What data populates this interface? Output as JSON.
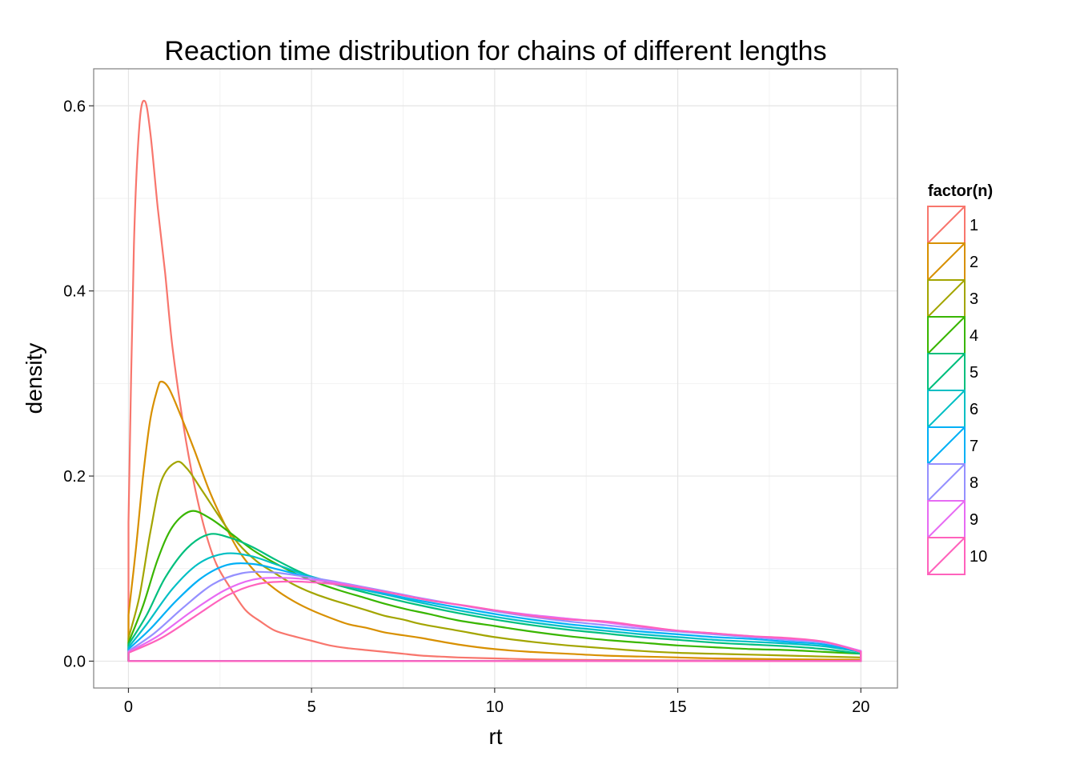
{
  "chart_data": {
    "type": "area",
    "title": "Reaction time distribution for chains of different lengths",
    "xlabel": "rt",
    "ylabel": "density",
    "xlim": [
      -0.95,
      21
    ],
    "ylim": [
      -0.029,
      0.64
    ],
    "x_ticks": [
      "0",
      "5",
      "10",
      "15",
      "20"
    ],
    "y_ticks": [
      "0.0",
      "0.2",
      "0.4",
      "0.6"
    ],
    "grid": true,
    "legend": {
      "title": "factor(n)",
      "placement": "right"
    },
    "series": [
      {
        "name": "1",
        "color": "#F8766D",
        "points": [
          [
            0,
            0.15
          ],
          [
            0.15,
            0.45
          ],
          [
            0.3,
            0.58
          ],
          [
            0.45,
            0.605
          ],
          [
            0.6,
            0.57
          ],
          [
            0.8,
            0.49
          ],
          [
            1.0,
            0.42
          ],
          [
            1.2,
            0.34
          ],
          [
            1.5,
            0.255
          ],
          [
            1.8,
            0.19
          ],
          [
            2.1,
            0.14
          ],
          [
            2.4,
            0.105
          ],
          [
            2.8,
            0.078
          ],
          [
            3.2,
            0.055
          ],
          [
            3.6,
            0.043
          ],
          [
            4.0,
            0.033
          ],
          [
            4.5,
            0.027
          ],
          [
            5.0,
            0.022
          ],
          [
            5.5,
            0.017
          ],
          [
            6.0,
            0.014
          ],
          [
            6.5,
            0.012
          ],
          [
            7.0,
            0.01
          ],
          [
            7.5,
            0.008
          ],
          [
            8.0,
            0.006
          ],
          [
            8.5,
            0.005
          ],
          [
            9.0,
            0.004
          ],
          [
            10,
            0.003
          ],
          [
            11,
            0.002
          ],
          [
            12,
            0.0015
          ],
          [
            14,
            0.001
          ],
          [
            16,
            0.0007
          ],
          [
            18,
            0.0005
          ],
          [
            20,
            0.0003
          ]
        ]
      },
      {
        "name": "2",
        "color": "#D89000",
        "points": [
          [
            0,
            0.05
          ],
          [
            0.2,
            0.12
          ],
          [
            0.4,
            0.2
          ],
          [
            0.6,
            0.262
          ],
          [
            0.8,
            0.295
          ],
          [
            0.9,
            0.302
          ],
          [
            1.1,
            0.295
          ],
          [
            1.4,
            0.268
          ],
          [
            1.8,
            0.228
          ],
          [
            2.2,
            0.185
          ],
          [
            2.6,
            0.15
          ],
          [
            3.0,
            0.12
          ],
          [
            3.5,
            0.095
          ],
          [
            4.0,
            0.078
          ],
          [
            4.5,
            0.065
          ],
          [
            5.0,
            0.055
          ],
          [
            5.5,
            0.047
          ],
          [
            6.0,
            0.04
          ],
          [
            6.5,
            0.036
          ],
          [
            7.0,
            0.031
          ],
          [
            7.5,
            0.028
          ],
          [
            8.0,
            0.025
          ],
          [
            9.0,
            0.018
          ],
          [
            10,
            0.013
          ],
          [
            11,
            0.01
          ],
          [
            12,
            0.008
          ],
          [
            13,
            0.006
          ],
          [
            14,
            0.005
          ],
          [
            15,
            0.004
          ],
          [
            16,
            0.003
          ],
          [
            18,
            0.002
          ],
          [
            20,
            0.0015
          ]
        ]
      },
      {
        "name": "3",
        "color": "#A3A500",
        "points": [
          [
            0,
            0.025
          ],
          [
            0.3,
            0.07
          ],
          [
            0.6,
            0.14
          ],
          [
            0.9,
            0.195
          ],
          [
            1.3,
            0.215
          ],
          [
            1.6,
            0.208
          ],
          [
            2.0,
            0.185
          ],
          [
            2.5,
            0.155
          ],
          [
            3.0,
            0.127
          ],
          [
            3.5,
            0.108
          ],
          [
            4.0,
            0.095
          ],
          [
            4.5,
            0.083
          ],
          [
            5.0,
            0.074
          ],
          [
            5.5,
            0.067
          ],
          [
            6.0,
            0.061
          ],
          [
            6.5,
            0.055
          ],
          [
            7.0,
            0.049
          ],
          [
            7.5,
            0.045
          ],
          [
            8.0,
            0.04
          ],
          [
            9.0,
            0.033
          ],
          [
            10,
            0.026
          ],
          [
            11,
            0.021
          ],
          [
            12,
            0.017
          ],
          [
            13,
            0.014
          ],
          [
            14,
            0.011
          ],
          [
            15,
            0.009
          ],
          [
            16,
            0.008
          ],
          [
            17,
            0.007
          ],
          [
            18,
            0.006
          ],
          [
            19,
            0.005
          ],
          [
            20,
            0.004
          ]
        ]
      },
      {
        "name": "4",
        "color": "#39B600",
        "points": [
          [
            0,
            0.02
          ],
          [
            0.4,
            0.06
          ],
          [
            0.8,
            0.11
          ],
          [
            1.2,
            0.145
          ],
          [
            1.7,
            0.162
          ],
          [
            2.2,
            0.155
          ],
          [
            2.8,
            0.138
          ],
          [
            3.4,
            0.12
          ],
          [
            4.0,
            0.106
          ],
          [
            4.6,
            0.094
          ],
          [
            5.2,
            0.084
          ],
          [
            5.8,
            0.076
          ],
          [
            6.4,
            0.069
          ],
          [
            7.0,
            0.062
          ],
          [
            7.6,
            0.056
          ],
          [
            8.2,
            0.051
          ],
          [
            9.0,
            0.044
          ],
          [
            10,
            0.038
          ],
          [
            11,
            0.032
          ],
          [
            12,
            0.027
          ],
          [
            13,
            0.023
          ],
          [
            14,
            0.02
          ],
          [
            15,
            0.017
          ],
          [
            16,
            0.015
          ],
          [
            17,
            0.013
          ],
          [
            18,
            0.012
          ],
          [
            19,
            0.01
          ],
          [
            20,
            0.008
          ]
        ]
      },
      {
        "name": "5",
        "color": "#00BF7D",
        "points": [
          [
            0,
            0.018
          ],
          [
            0.5,
            0.05
          ],
          [
            1.0,
            0.09
          ],
          [
            1.6,
            0.122
          ],
          [
            2.2,
            0.137
          ],
          [
            2.8,
            0.133
          ],
          [
            3.4,
            0.123
          ],
          [
            4.0,
            0.11
          ],
          [
            4.6,
            0.098
          ],
          [
            5.2,
            0.088
          ],
          [
            6.0,
            0.079
          ],
          [
            7.0,
            0.069
          ],
          [
            8.0,
            0.06
          ],
          [
            9.0,
            0.052
          ],
          [
            10,
            0.045
          ],
          [
            11,
            0.039
          ],
          [
            12,
            0.034
          ],
          [
            13,
            0.03
          ],
          [
            14,
            0.026
          ],
          [
            15,
            0.023
          ],
          [
            16,
            0.02
          ],
          [
            17,
            0.018
          ],
          [
            18,
            0.016
          ],
          [
            19,
            0.013
          ],
          [
            20,
            0.008
          ]
        ]
      },
      {
        "name": "6",
        "color": "#00BFC4",
        "points": [
          [
            0,
            0.015
          ],
          [
            0.5,
            0.04
          ],
          [
            1.2,
            0.078
          ],
          [
            1.9,
            0.105
          ],
          [
            2.6,
            0.116
          ],
          [
            3.3,
            0.114
          ],
          [
            4.0,
            0.105
          ],
          [
            4.7,
            0.095
          ],
          [
            5.4,
            0.087
          ],
          [
            6.2,
            0.079
          ],
          [
            7.0,
            0.072
          ],
          [
            8.0,
            0.063
          ],
          [
            9.0,
            0.055
          ],
          [
            10,
            0.048
          ],
          [
            11,
            0.042
          ],
          [
            12,
            0.037
          ],
          [
            13,
            0.033
          ],
          [
            14,
            0.029
          ],
          [
            15,
            0.026
          ],
          [
            16,
            0.023
          ],
          [
            17,
            0.021
          ],
          [
            18,
            0.019
          ],
          [
            19,
            0.016
          ],
          [
            20,
            0.01
          ]
        ]
      },
      {
        "name": "7",
        "color": "#00B0F6",
        "points": [
          [
            0,
            0.013
          ],
          [
            0.6,
            0.035
          ],
          [
            1.3,
            0.065
          ],
          [
            2.0,
            0.09
          ],
          [
            2.7,
            0.104
          ],
          [
            3.4,
            0.105
          ],
          [
            4.1,
            0.099
          ],
          [
            4.8,
            0.092
          ],
          [
            5.5,
            0.086
          ],
          [
            6.3,
            0.079
          ],
          [
            7.0,
            0.073
          ],
          [
            8.0,
            0.065
          ],
          [
            9.0,
            0.058
          ],
          [
            10,
            0.051
          ],
          [
            11,
            0.045
          ],
          [
            12,
            0.04
          ],
          [
            13,
            0.036
          ],
          [
            14,
            0.032
          ],
          [
            15,
            0.029
          ],
          [
            16,
            0.026
          ],
          [
            17,
            0.024
          ],
          [
            18,
            0.021
          ],
          [
            19,
            0.018
          ],
          [
            20,
            0.01
          ]
        ]
      },
      {
        "name": "8",
        "color": "#9590FF",
        "points": [
          [
            0,
            0.011
          ],
          [
            0.7,
            0.03
          ],
          [
            1.5,
            0.058
          ],
          [
            2.3,
            0.083
          ],
          [
            3.1,
            0.095
          ],
          [
            3.9,
            0.096
          ],
          [
            4.7,
            0.092
          ],
          [
            5.5,
            0.087
          ],
          [
            6.3,
            0.081
          ],
          [
            7.1,
            0.075
          ],
          [
            8.0,
            0.068
          ],
          [
            9.0,
            0.061
          ],
          [
            10,
            0.054
          ],
          [
            11,
            0.048
          ],
          [
            12,
            0.043
          ],
          [
            13,
            0.039
          ],
          [
            14,
            0.035
          ],
          [
            15,
            0.032
          ],
          [
            16,
            0.029
          ],
          [
            17,
            0.026
          ],
          [
            18,
            0.023
          ],
          [
            19,
            0.02
          ],
          [
            20,
            0.011
          ]
        ]
      },
      {
        "name": "9",
        "color": "#E76BF3",
        "points": [
          [
            0,
            0.01
          ],
          [
            0.8,
            0.027
          ],
          [
            1.7,
            0.053
          ],
          [
            2.6,
            0.076
          ],
          [
            3.4,
            0.088
          ],
          [
            4.2,
            0.09
          ],
          [
            5.0,
            0.088
          ],
          [
            5.8,
            0.084
          ],
          [
            6.6,
            0.078
          ],
          [
            7.4,
            0.072
          ],
          [
            8.2,
            0.066
          ],
          [
            9.0,
            0.061
          ],
          [
            10,
            0.055
          ],
          [
            11,
            0.05
          ],
          [
            12,
            0.046
          ],
          [
            13,
            0.042
          ],
          [
            14,
            0.037
          ],
          [
            15,
            0.033
          ],
          [
            16,
            0.03
          ],
          [
            17,
            0.027
          ],
          [
            18,
            0.024
          ],
          [
            19,
            0.021
          ],
          [
            20,
            0.011
          ]
        ]
      },
      {
        "name": "10",
        "color": "#FF62BC",
        "points": [
          [
            0,
            0.009
          ],
          [
            0.9,
            0.025
          ],
          [
            1.8,
            0.048
          ],
          [
            2.7,
            0.071
          ],
          [
            3.5,
            0.083
          ],
          [
            4.3,
            0.086
          ],
          [
            5.1,
            0.085
          ],
          [
            5.9,
            0.082
          ],
          [
            6.7,
            0.077
          ],
          [
            7.5,
            0.071
          ],
          [
            8.3,
            0.065
          ],
          [
            9.2,
            0.06
          ],
          [
            10,
            0.055
          ],
          [
            11,
            0.049
          ],
          [
            12,
            0.045
          ],
          [
            13,
            0.043
          ],
          [
            14,
            0.038
          ],
          [
            15,
            0.033
          ],
          [
            16,
            0.03
          ],
          [
            17,
            0.027
          ],
          [
            18,
            0.025
          ],
          [
            19,
            0.021
          ],
          [
            20,
            0.01
          ]
        ]
      }
    ]
  }
}
